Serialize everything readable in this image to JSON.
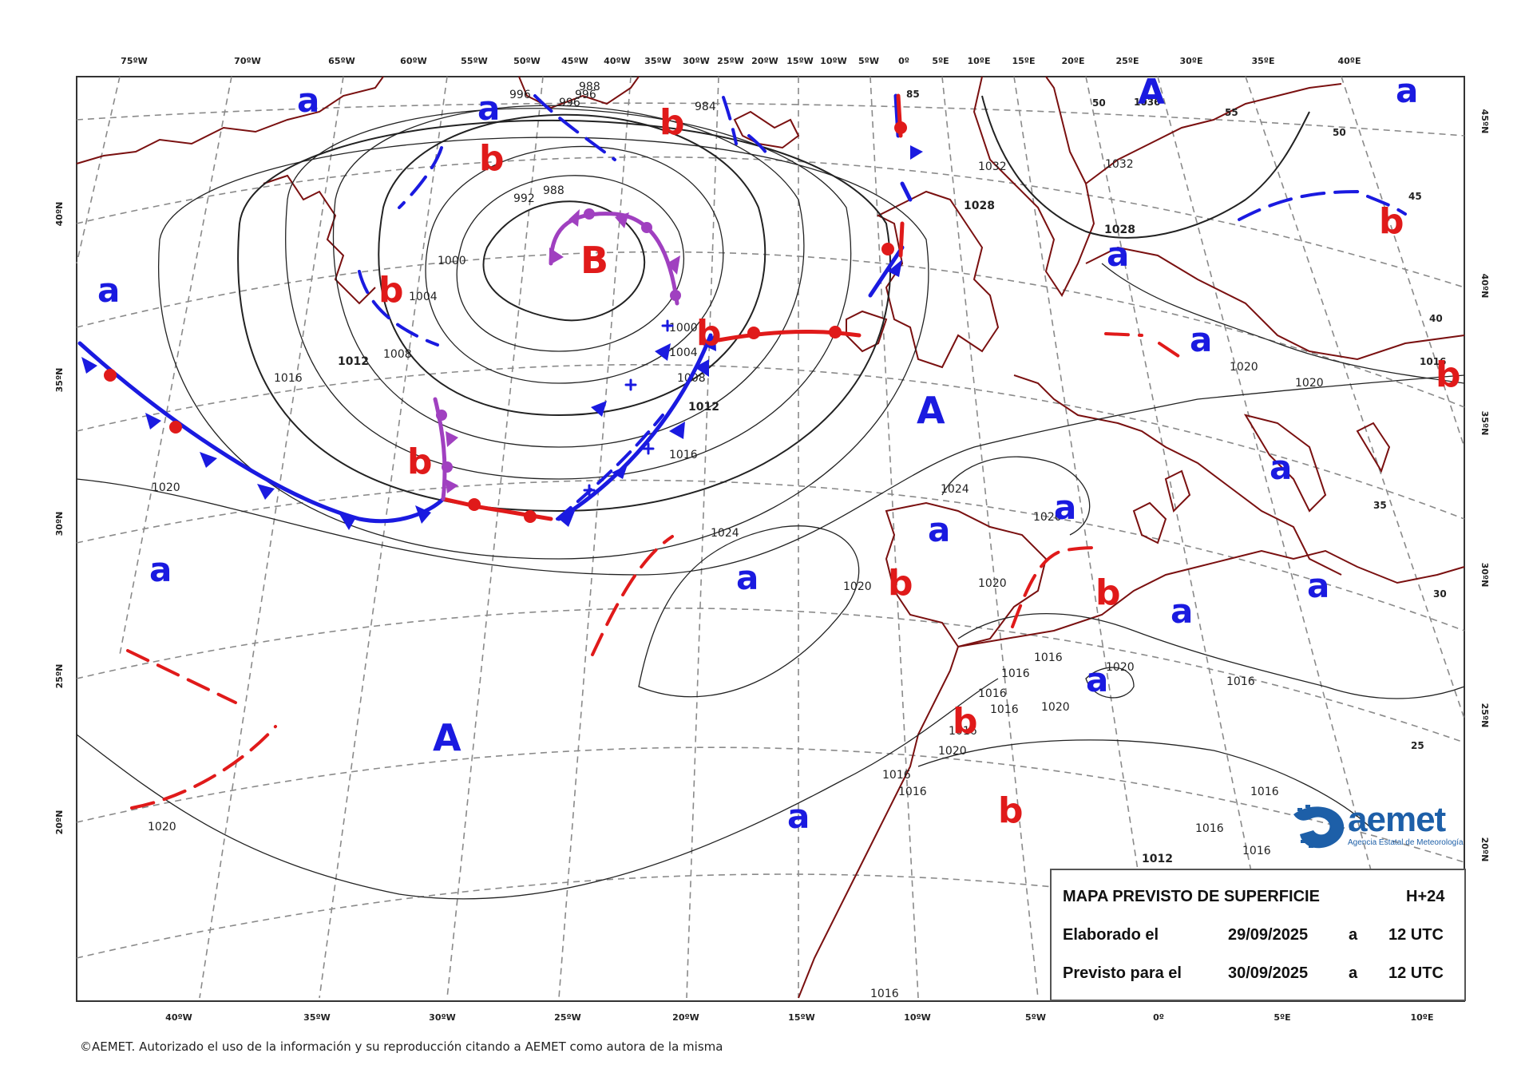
{
  "title": "MAPA PREVISTO DE SUPERFICIE",
  "forecast_step": "H+24",
  "issued": {
    "label": "Elaborado el",
    "date": "29/09/2025",
    "at": "a",
    "time": "12 UTC"
  },
  "valid": {
    "label": "Previsto para el",
    "date": "30/09/2025",
    "at": "a",
    "time": "12 UTC"
  },
  "copyright": "©AEMET. Autorizado el uso de la información y su reproducción citando a AEMET como autora de la misma",
  "logo": {
    "text": "aemet",
    "subtitle": "Agencia Estatal de Meteorología"
  },
  "top_axis_labels": [
    "75ºW",
    "70ºW",
    "65ºW",
    "60ºW",
    "55ºW",
    "50ºW",
    "45ºW",
    "40ºW",
    "35ºW",
    "30ºW",
    "25ºW",
    "20ºW",
    "15ºW",
    "10ºW",
    "5ºW",
    "0º",
    "5ºE",
    "10ºE",
    "15ºE",
    "20ºE",
    "25ºE",
    "30ºE",
    "35ºE",
    "40ºE"
  ],
  "bottom_axis_labels": [
    "40ºW",
    "35ºW",
    "30ºW",
    "25ºW",
    "20ºW",
    "15ºW",
    "10ºW",
    "5ºW",
    "0º",
    "5ºE",
    "10ºE"
  ],
  "left_axis_labels": [
    "40ºN",
    "35ºN",
    "30ºN",
    "25ºN",
    "20ºN"
  ],
  "right_axis_labels": [
    "45ºN",
    "40ºN",
    "35ºN",
    "30ºN",
    "25ºN",
    "20ºN"
  ],
  "pressure_centers": [
    {
      "letter": "A",
      "kind": "high"
    },
    {
      "letter": "A",
      "kind": "high"
    },
    {
      "letter": "A",
      "kind": "high"
    },
    {
      "letter": "B",
      "kind": "low"
    },
    {
      "letter": "a",
      "kind": "high"
    },
    {
      "letter": "a",
      "kind": "high"
    },
    {
      "letter": "a",
      "kind": "high"
    },
    {
      "letter": "a",
      "kind": "high"
    },
    {
      "letter": "a",
      "kind": "high"
    },
    {
      "letter": "a",
      "kind": "high"
    },
    {
      "letter": "a",
      "kind": "high"
    },
    {
      "letter": "a",
      "kind": "high"
    },
    {
      "letter": "a",
      "kind": "high"
    },
    {
      "letter": "a",
      "kind": "high"
    },
    {
      "letter": "a",
      "kind": "high"
    },
    {
      "letter": "a",
      "kind": "high"
    },
    {
      "letter": "a",
      "kind": "high"
    },
    {
      "letter": "a",
      "kind": "high"
    },
    {
      "letter": "a",
      "kind": "high"
    },
    {
      "letter": "b",
      "kind": "low"
    },
    {
      "letter": "b",
      "kind": "low"
    },
    {
      "letter": "b",
      "kind": "low"
    },
    {
      "letter": "b",
      "kind": "low"
    },
    {
      "letter": "b",
      "kind": "low"
    },
    {
      "letter": "b",
      "kind": "low"
    },
    {
      "letter": "b",
      "kind": "low"
    },
    {
      "letter": "b",
      "kind": "low"
    },
    {
      "letter": "b",
      "kind": "low"
    },
    {
      "letter": "b",
      "kind": "low"
    },
    {
      "letter": "b",
      "kind": "low"
    }
  ],
  "isobar_labels": [
    "996",
    "996",
    "996",
    "988",
    "984",
    "992",
    "988",
    "1000",
    "1004",
    "1008",
    "1012",
    "1016",
    "1020",
    "1000",
    "1004",
    "1008",
    "1012",
    "1016",
    "1024",
    "1020",
    "1020",
    "1024",
    "1028",
    "1032",
    "1032",
    "1028",
    "1020",
    "1020",
    "1020",
    "1016",
    "1016",
    "1016",
    "1016",
    "1016",
    "1020",
    "1020",
    "1016",
    "1016",
    "1016",
    "1016",
    "1016",
    "1012",
    "1016",
    "1020",
    "1020",
    "1016"
  ],
  "right_small_labels": [
    "55",
    "50",
    "45",
    "40",
    "35",
    "30",
    "25",
    "85",
    "50",
    "1036",
    "1016"
  ],
  "colors": {
    "high_center": "#1a1ae0",
    "low_center": "#e01a1a",
    "cold_front": "#1a1ae0",
    "warm_front": "#e01a1a",
    "occluded_front": "#a040c0",
    "coastline": "#7a1010",
    "isobar": "#222222",
    "graticule": "#888888"
  }
}
